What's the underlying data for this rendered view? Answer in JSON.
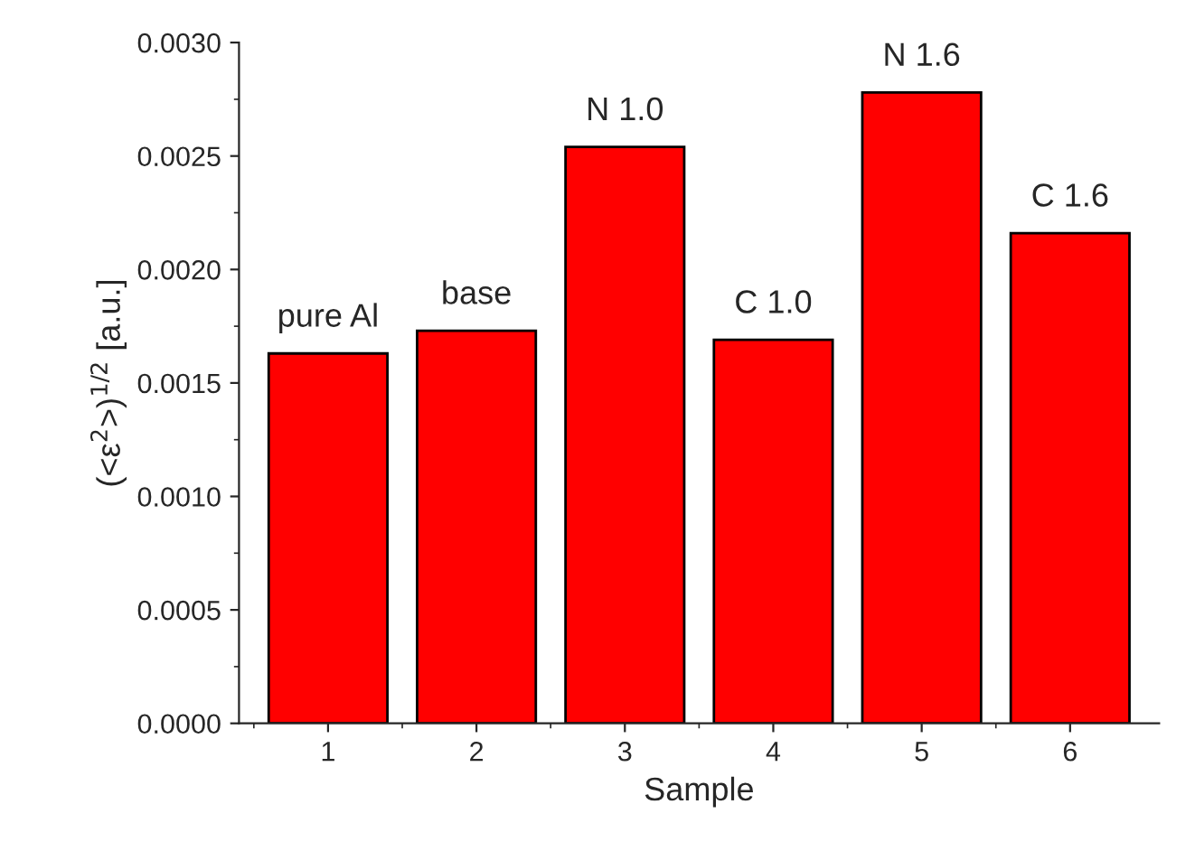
{
  "chart_data": {
    "type": "bar",
    "xlabel": "Sample",
    "ylabel": "(<ε$^{2}$>)$^{1/2}$ [a.u.]",
    "categories": [
      "1",
      "2",
      "3",
      "4",
      "5",
      "6"
    ],
    "values": [
      0.00163,
      0.00173,
      0.00254,
      0.00169,
      0.00278,
      0.00216
    ],
    "color": "#ff0000",
    "ylim": [
      0,
      0.003
    ],
    "yticks": [
      {
        "value": 0,
        "label": "0.0000"
      },
      {
        "value": 0.0005,
        "label": "0.0005"
      },
      {
        "value": 0.001,
        "label": "0.0010"
      },
      {
        "value": 0.0015,
        "label": "0.0015"
      },
      {
        "value": 0.002,
        "label": "0.0020"
      },
      {
        "value": 0.0025,
        "label": "0.0025"
      },
      {
        "value": 0.003,
        "label": "0.0030"
      }
    ],
    "grid": false,
    "legend": false,
    "annotations": [
      {
        "text": "pure Al",
        "x": "1",
        "y": 0.00163
      },
      {
        "text": "base",
        "x": "2",
        "y": 0.00173
      },
      {
        "text": "N 1.0",
        "x": "3",
        "y": 0.00254
      },
      {
        "text": "C 1.0",
        "x": "4",
        "y": 0.00169
      },
      {
        "text": "N 1.6",
        "x": "5",
        "y": 0.00278
      },
      {
        "text": "C 1.6",
        "x": "6",
        "y": 0.00216
      }
    ]
  }
}
